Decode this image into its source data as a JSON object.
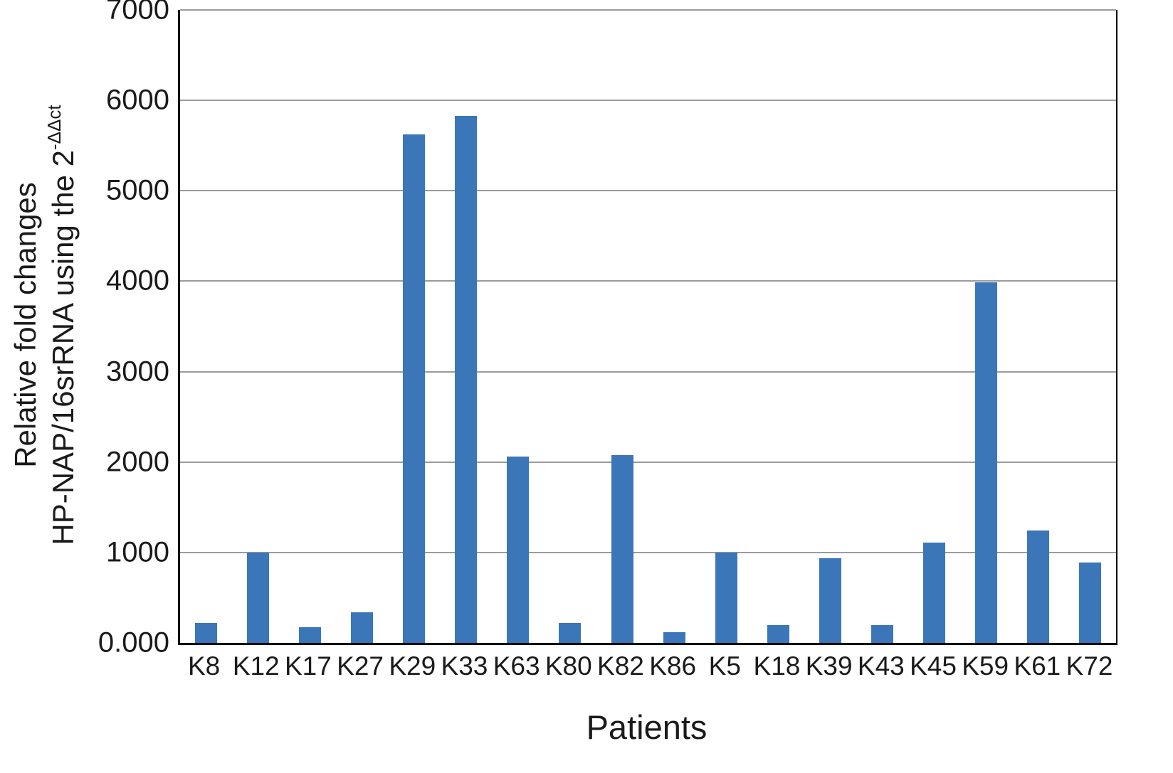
{
  "chart_data": {
    "type": "bar",
    "categories": [
      "K8",
      "K12",
      "K17",
      "K27",
      "K29",
      "K33",
      "K63",
      "K80",
      "K82",
      "K86",
      "K5",
      "K18",
      "K39",
      "K43",
      "K45",
      "K59",
      "K61",
      "K72"
    ],
    "values": [
      220,
      1000,
      170,
      340,
      5620,
      5830,
      2060,
      220,
      2080,
      120,
      1000,
      200,
      940,
      200,
      1110,
      3990,
      1240,
      890
    ],
    "title": "",
    "xlabel": "Patients",
    "ylabel_line1": "Relative fold changes",
    "ylabel_line2_base": "HP-NAP/16srRNA using the 2",
    "ylabel_line2_sup": "-ΔΔct",
    "ylim": [
      0,
      7000
    ],
    "ytick_interval": 1000,
    "ytick_labels": [
      "0.000",
      "1000",
      "2000",
      "3000",
      "4000",
      "5000",
      "6000",
      "7000"
    ],
    "grid": true,
    "legend": "none",
    "bar_color": "#3b76b8",
    "gridline_color": "#9b9b9b",
    "axis_color": "#000000"
  }
}
